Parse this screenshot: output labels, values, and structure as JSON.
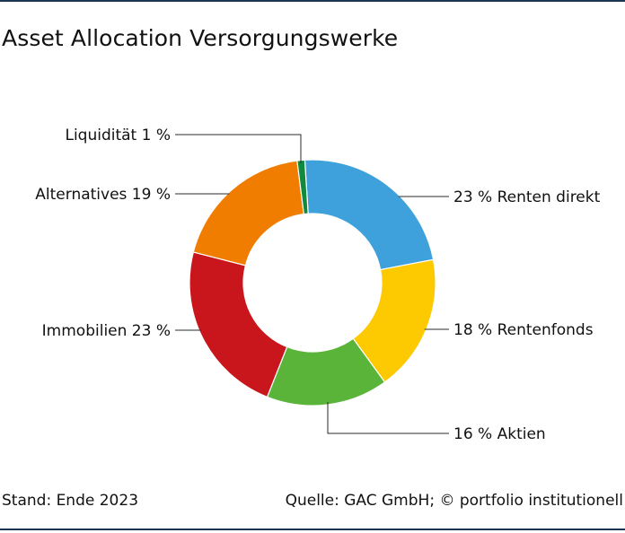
{
  "header": {
    "title": "Asset Allocation Versorgungswerke"
  },
  "footer": {
    "stand": "Stand: Ende 2023",
    "quelle": "Quelle: GAC GmbH; © portfolio institutionell"
  },
  "chart_data": {
    "type": "pie",
    "donut": true,
    "title": "Asset Allocation Versorgungswerke",
    "unit": "%",
    "slices": [
      {
        "label": "Renten direkt",
        "value": 23,
        "display": "23 % Renten direkt",
        "color": "#3fa1db"
      },
      {
        "label": "Rentenfonds",
        "value": 18,
        "display": "18 % Rentenfonds",
        "color": "#fdc900"
      },
      {
        "label": "Aktien",
        "value": 16,
        "display": "16 % Aktien",
        "color": "#5bb43a"
      },
      {
        "label": "Immobilien",
        "value": 23,
        "display": "Immobilien 23 %",
        "color": "#c8161c"
      },
      {
        "label": "Alternatives",
        "value": 19,
        "display": "Alternatives 19 %",
        "color": "#f07d00"
      },
      {
        "label": "Liquidität",
        "value": 1,
        "display": "Liquidität 1 %",
        "color": "#118a3e"
      }
    ]
  }
}
